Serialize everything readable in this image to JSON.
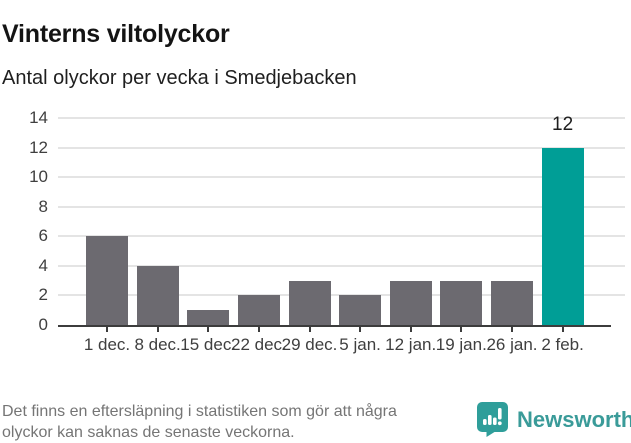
{
  "header": {
    "title": "Vinterns viltolyckor",
    "subtitle": "Antal olyckor per vecka i Smedjebacken"
  },
  "chart_data": {
    "type": "bar",
    "title": "Vinterns viltolyckor",
    "subtitle": "Antal olyckor per vecka i Smedjebacken",
    "categories": [
      "1 dec.",
      "8 dec.",
      "15 dec.",
      "22 dec.",
      "29 dec.",
      "5 jan.",
      "12 jan.",
      "19 jan.",
      "26 jan.",
      "2 feb."
    ],
    "values": [
      6,
      4,
      1,
      2,
      3,
      2,
      3,
      3,
      3,
      12
    ],
    "highlight_index": 9,
    "data_label": {
      "index": 9,
      "text": "12"
    },
    "xlabel": "",
    "ylabel": "",
    "ylim": [
      0,
      14
    ],
    "ytick_step": 2,
    "yticks": [
      0,
      2,
      4,
      6,
      8,
      10,
      12,
      14
    ],
    "grid": true,
    "legend": "none",
    "colors": {
      "bar": "#6c6a70",
      "highlight": "#009e96",
      "gridline": "#e4e4e4",
      "axis": "#3c3c3c",
      "tick_label": "#3f3f3f",
      "data_label": "#1e1e1e"
    }
  },
  "footer": {
    "note_line1": "Det finns en eftersläpning i statistiken som gör att några",
    "note_line2": "olyckor kan saknas de senaste veckorna.",
    "brand": "Newsworthy",
    "brand_color": "#3a9b99",
    "logo_color": "#2f9e9a"
  }
}
